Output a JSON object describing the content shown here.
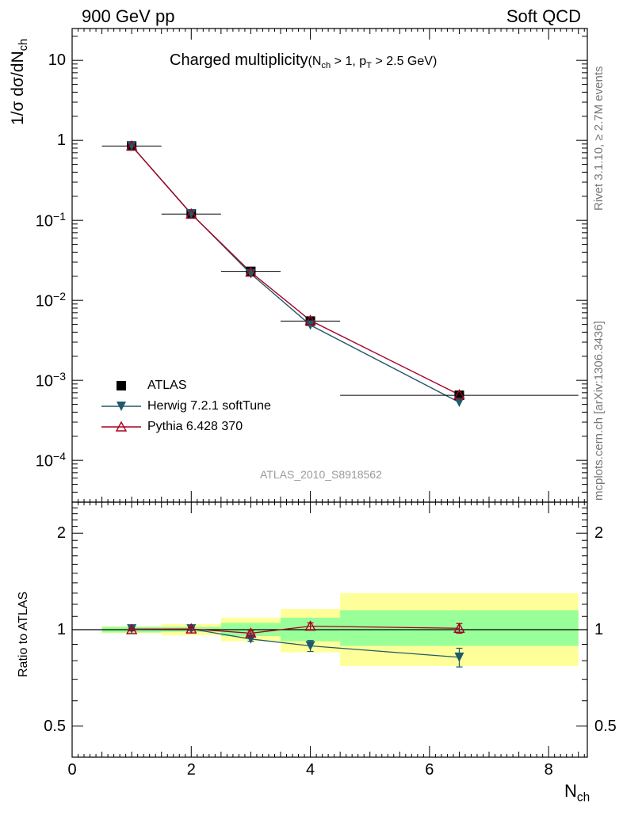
{
  "header": {
    "left": "900 GeV pp",
    "right": "Soft QCD"
  },
  "title": {
    "main": "Charged multiplicity",
    "cut_open": "(N",
    "cut_sub1": "ch",
    "cut_mid": " > 1, p",
    "cut_sub2": "T",
    "cut_close": " > 2.5 GeV)"
  },
  "ylabel_top": {
    "prefix": "1/σ dσ/dN",
    "sub": "ch"
  },
  "ylabel_bottom": "Ratio to ATLAS",
  "xlabel": {
    "main": "N",
    "sub": "ch"
  },
  "side_text": {
    "rivet": "Rivet 3.1.10, ≥ 2.7M events",
    "mcplots": "mcplots.cern.ch [arXiv:1306.3436]"
  },
  "analysis_id": "ATLAS_2010_S8918562",
  "legend": {
    "atlas": "ATLAS",
    "herwig": "Herwig 7.2.1 softTune",
    "pythia": "Pythia 6.428 370"
  },
  "colors": {
    "atlas": "#000000",
    "herwig": "#1f5a6b",
    "pythia": "#a50021",
    "band_inner": "#99ff99",
    "band_outer": "#ffff99"
  },
  "chart_data": [
    {
      "type": "line",
      "title": "Charged multiplicity (Nch > 1, pT > 2.5 GeV)",
      "xlabel": "Nch",
      "ylabel": "1/σ dσ/dNch",
      "yscale": "log",
      "xlim": [
        0,
        8.65
      ],
      "ylim": [
        3e-05,
        25
      ],
      "ytick_labels": [
        "10",
        "1",
        "10^-1",
        "10^-2",
        "10^-3",
        "10^-4"
      ],
      "series": [
        {
          "name": "ATLAS",
          "marker": "square",
          "x": [
            1,
            2,
            3,
            4,
            6.5
          ],
          "y": [
            0.85,
            0.12,
            0.023,
            0.0055,
            0.00065
          ],
          "xerr": [
            0.5,
            0.5,
            0.5,
            0.5,
            2.0
          ]
        },
        {
          "name": "Herwig 7.2.1 softTune",
          "marker": "triangle-down",
          "x": [
            1,
            2,
            3,
            4,
            6.5
          ],
          "y": [
            0.855,
            0.121,
            0.0215,
            0.0049,
            0.00053
          ]
        },
        {
          "name": "Pythia 6.428 370",
          "marker": "triangle-up-open",
          "x": [
            1,
            2,
            3,
            4,
            6.5
          ],
          "y": [
            0.85,
            0.12,
            0.0225,
            0.0056,
            0.00066
          ]
        }
      ]
    },
    {
      "type": "line",
      "title": "",
      "xlabel": "Nch",
      "ylabel": "Ratio to ATLAS",
      "yscale": "log",
      "xlim": [
        0,
        8.65
      ],
      "ylim": [
        0.4,
        2.5
      ],
      "ytick_labels": [
        "0.5",
        "1",
        "2"
      ],
      "xtick_labels": [
        "0",
        "2",
        "4",
        "6",
        "8"
      ],
      "bands": [
        {
          "x_lo": 0.5,
          "x_hi": 1.5,
          "inner": [
            0.98,
            1.02
          ],
          "outer": [
            0.975,
            1.025
          ]
        },
        {
          "x_lo": 1.5,
          "x_hi": 2.5,
          "inner": [
            0.985,
            1.02
          ],
          "outer": [
            0.96,
            1.04
          ]
        },
        {
          "x_lo": 2.5,
          "x_hi": 3.5,
          "inner": [
            0.955,
            1.05
          ],
          "outer": [
            0.92,
            1.09
          ]
        },
        {
          "x_lo": 3.5,
          "x_hi": 4.5,
          "inner": [
            0.92,
            1.09
          ],
          "outer": [
            0.85,
            1.16
          ]
        },
        {
          "x_lo": 4.5,
          "x_hi": 8.5,
          "inner": [
            0.89,
            1.15
          ],
          "outer": [
            0.77,
            1.3
          ]
        }
      ],
      "series": [
        {
          "name": "Herwig 7.2.1 softTune",
          "marker": "triangle-down",
          "x": [
            1,
            2,
            3,
            4,
            6.5
          ],
          "y": [
            1.005,
            1.005,
            0.935,
            0.89,
            0.82
          ],
          "yerr": [
            0.008,
            0.01,
            0.015,
            0.035,
            0.055
          ]
        },
        {
          "name": "Pythia 6.428 370",
          "marker": "triangle-up-open",
          "x": [
            1,
            2,
            3,
            4,
            6.5
          ],
          "y": [
            1.0,
            1.005,
            0.975,
            1.025,
            1.01
          ],
          "yerr": [
            0.008,
            0.01,
            0.015,
            0.025,
            0.035
          ]
        }
      ]
    }
  ]
}
